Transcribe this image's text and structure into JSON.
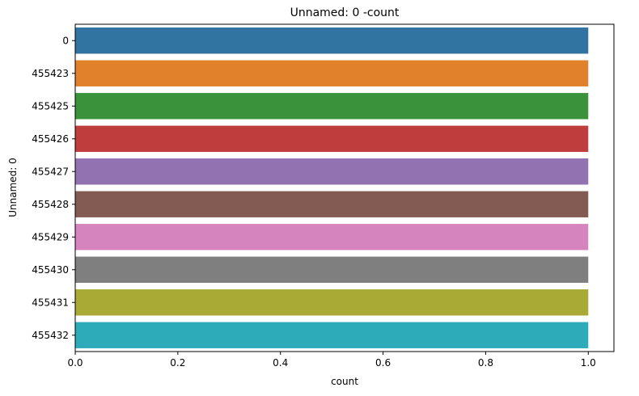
{
  "chart_data": {
    "type": "bar",
    "orientation": "horizontal",
    "title": "Unnamed: 0 -count",
    "xlabel": "count",
    "ylabel": "Unnamed: 0",
    "categories": [
      "0",
      "455423",
      "455425",
      "455426",
      "455427",
      "455428",
      "455429",
      "455430",
      "455431",
      "455432"
    ],
    "values": [
      1,
      1,
      1,
      1,
      1,
      1,
      1,
      1,
      1,
      1
    ],
    "xlim": [
      0,
      1.05
    ],
    "xticks": [
      0.0,
      0.2,
      0.4,
      0.6,
      0.8,
      1.0
    ],
    "xtick_labels": [
      "0.0",
      "0.2",
      "0.4",
      "0.6",
      "0.8",
      "1.0"
    ],
    "grid": false,
    "legend": "none",
    "colors": [
      "#3274a1",
      "#e1812c",
      "#3a923a",
      "#c03d3e",
      "#9372b2",
      "#845b53",
      "#d684bd",
      "#7f7f7f",
      "#a9aa35",
      "#2eabb8"
    ]
  }
}
